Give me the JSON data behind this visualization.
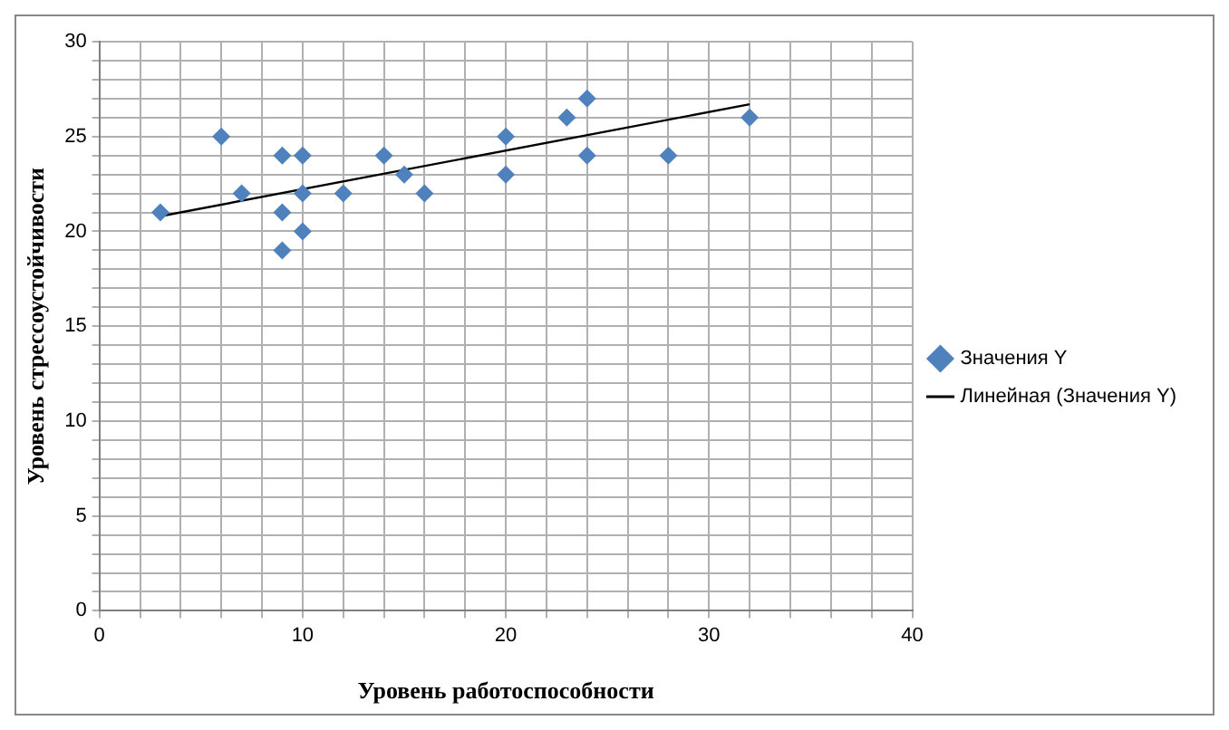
{
  "chart_data": {
    "type": "scatter",
    "xlabel": "Уровень работоспособности",
    "ylabel": "Уровень стрессоустойчивости",
    "marker": "diamond",
    "grid": true,
    "legend": "right",
    "xlim": [
      0,
      40
    ],
    "ylim": [
      0,
      30
    ],
    "xticks": [
      0,
      {
        "value": 2,
        "label": null
      },
      {
        "value": 4,
        "label": null
      },
      {
        "value": 6,
        "label": null
      },
      {
        "value": 8,
        "label": null
      },
      10,
      {
        "value": 12,
        "label": null
      },
      {
        "value": 14,
        "label": null
      },
      {
        "value": 16,
        "label": null
      },
      {
        "value": 18,
        "label": null
      },
      20,
      {
        "value": 22,
        "label": null
      },
      {
        "value": 24,
        "label": null
      },
      {
        "value": 26,
        "label": null
      },
      {
        "value": 28,
        "label": null
      },
      30,
      {
        "value": 32,
        "label": null
      },
      {
        "value": 34,
        "label": null
      },
      {
        "value": 36,
        "label": null
      },
      {
        "value": 38,
        "label": null
      },
      40
    ],
    "yticks": [
      0,
      {
        "value": 1,
        "label": null
      },
      {
        "value": 2,
        "label": null
      },
      {
        "value": 3,
        "label": null
      },
      {
        "value": 4,
        "label": null
      },
      5,
      {
        "value": 6,
        "label": null
      },
      {
        "value": 7,
        "label": null
      },
      {
        "value": 8,
        "label": null
      },
      {
        "value": 9,
        "label": null
      },
      10,
      {
        "value": 11,
        "label": null
      },
      {
        "value": 12,
        "label": null
      },
      {
        "value": 13,
        "label": null
      },
      {
        "value": 14,
        "label": null
      },
      15,
      {
        "value": 16,
        "label": null
      },
      {
        "value": 17,
        "label": null
      },
      {
        "value": 18,
        "label": null
      },
      {
        "value": 19,
        "label": null
      },
      20,
      {
        "value": 21,
        "label": null
      },
      {
        "value": 22,
        "label": null
      },
      {
        "value": 23,
        "label": null
      },
      {
        "value": 24,
        "label": null
      },
      25,
      {
        "value": 26,
        "label": null
      },
      {
        "value": 27,
        "label": null
      },
      {
        "value": 28,
        "label": null
      },
      {
        "value": 29,
        "label": null
      },
      30
    ],
    "series": [
      {
        "name": "Значения Y",
        "color": "#4f81bd",
        "x": [
          3,
          6,
          7,
          9,
          9,
          9,
          10,
          10,
          10,
          12,
          14,
          15,
          16,
          20,
          20,
          23,
          24,
          24,
          28,
          32
        ],
        "values": [
          21,
          25,
          22,
          24,
          21,
          19,
          24,
          22,
          20,
          22,
          24,
          23,
          22,
          25,
          23,
          26,
          27,
          24,
          24,
          26
        ]
      },
      {
        "name": "Линейная (Значения Y)",
        "type": "line",
        "color": "#000000",
        "marker": "none",
        "x": [
          3,
          32
        ],
        "values": [
          20.8,
          26.7
        ]
      }
    ]
  }
}
